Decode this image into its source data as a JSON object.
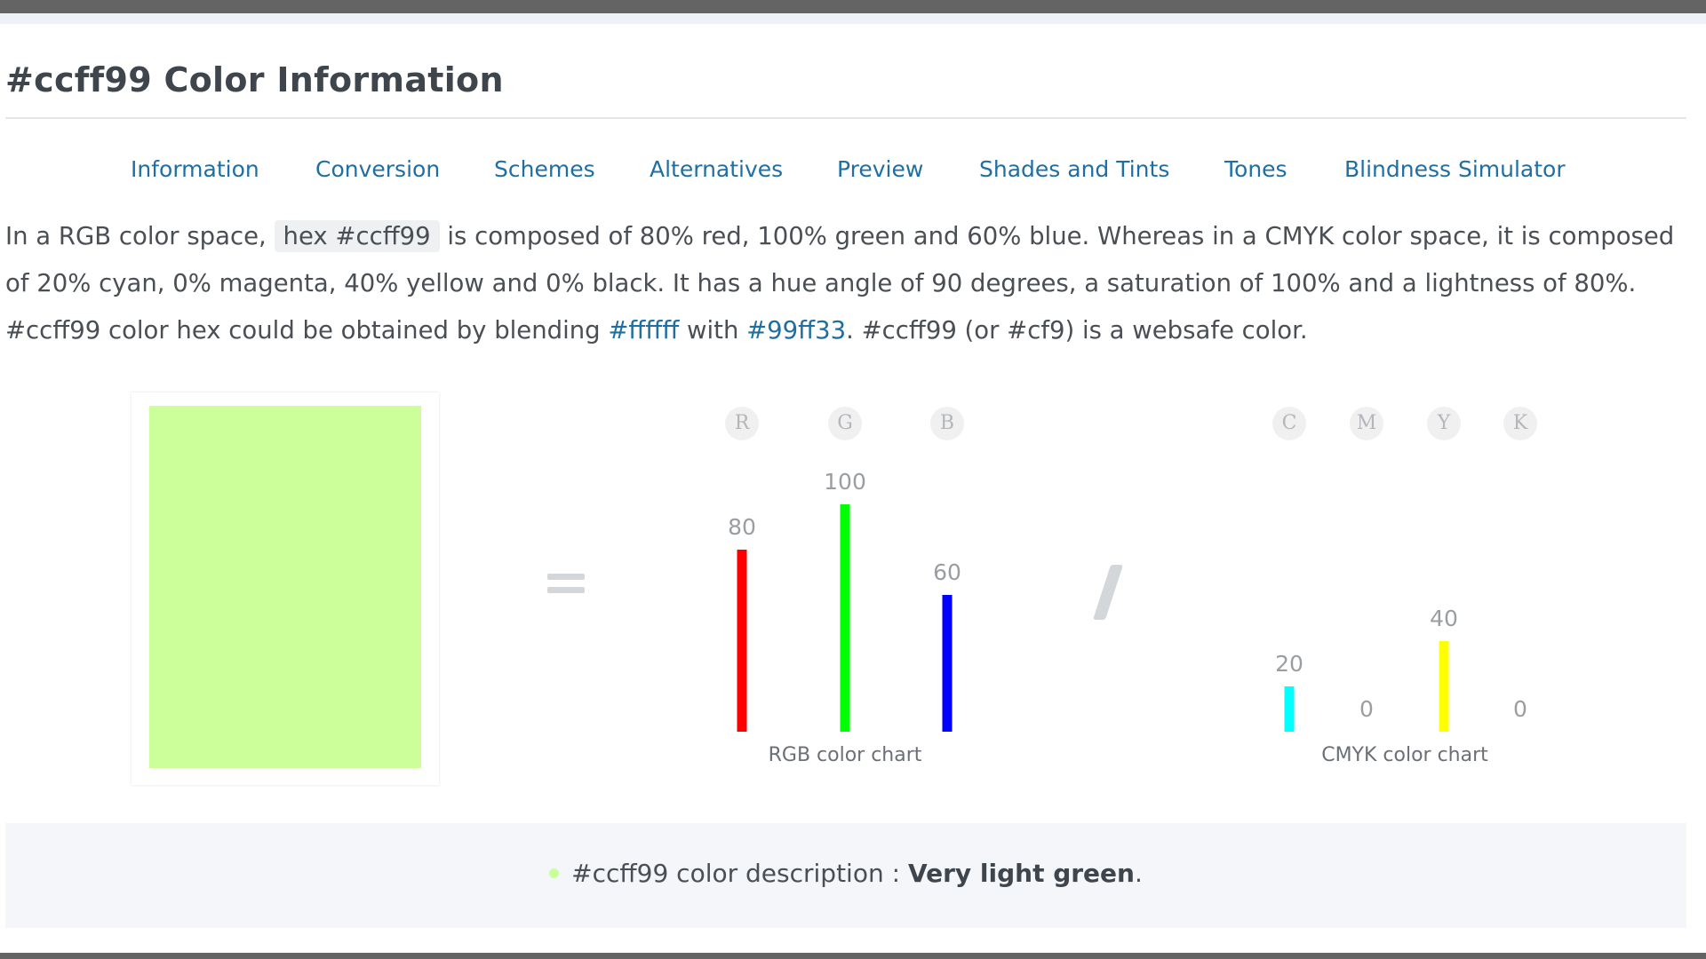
{
  "page": {
    "title": "#ccff99 Color Information"
  },
  "tabs": [
    {
      "label": "Information"
    },
    {
      "label": "Conversion"
    },
    {
      "label": "Schemes"
    },
    {
      "label": "Alternatives"
    },
    {
      "label": "Preview"
    },
    {
      "label": "Shades and Tints"
    },
    {
      "label": "Tones"
    },
    {
      "label": "Blindness Simulator"
    }
  ],
  "intro": {
    "t1": "In a RGB color space,",
    "code": "hex #ccff99",
    "t2": "is composed of 80% red, 100% green and 60% blue. Whereas in a CMYK color space, it is composed of 20% cyan, 0% magenta, 40% yellow and 0% black. It has a hue angle of 90 degrees, a saturation of 100% and a lightness of 80%. #ccff99 color hex could be obtained by blending",
    "link1": "#ffffff",
    "t3": "with",
    "link2": "#99ff33",
    "t4": ". #ccff99 (or #cf9) is a websafe color."
  },
  "swatch": {
    "color": "#ccff99"
  },
  "chart_data": [
    {
      "type": "bar",
      "title": "RGB color chart",
      "categories": [
        "R",
        "G",
        "B"
      ],
      "values": [
        80,
        100,
        60
      ],
      "colors": [
        "#ff0000",
        "#00ff00",
        "#0000ff"
      ],
      "ylim": [
        0,
        100
      ]
    },
    {
      "type": "bar",
      "title": "CMYK color chart",
      "categories": [
        "C",
        "M",
        "Y",
        "K"
      ],
      "values": [
        20,
        0,
        40,
        0
      ],
      "colors": [
        "#00ffff",
        "#ff00ff",
        "#ffff00",
        "#000000"
      ],
      "ylim": [
        0,
        100
      ]
    }
  ],
  "description": {
    "prefix": "#ccff99 color description : ",
    "value": "Very light green",
    "suffix": ".",
    "bullet_color": "#ccff99"
  }
}
